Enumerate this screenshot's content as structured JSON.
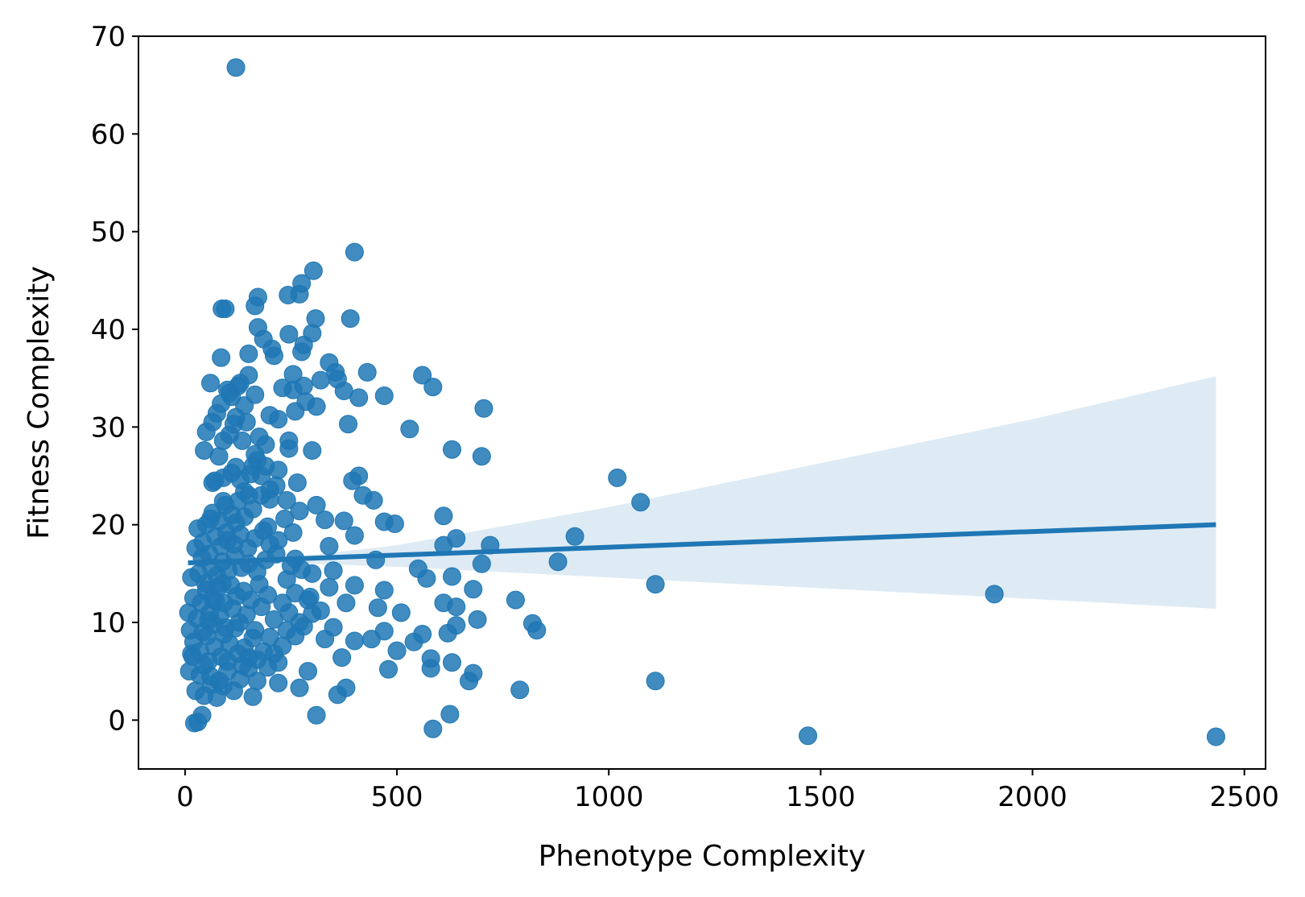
{
  "chart_data": {
    "type": "scatter",
    "title": "",
    "xlabel": "Phenotype Complexity",
    "ylabel": "Fitness Complexity",
    "xlim": [
      -110,
      2550
    ],
    "ylim": [
      -5,
      70
    ],
    "xticks": [
      0,
      500,
      1000,
      1500,
      2000,
      2500
    ],
    "yticks": [
      0,
      10,
      20,
      30,
      40,
      50,
      60,
      70
    ],
    "grid": false,
    "legend": "none",
    "colors": {
      "points": "#1f77b4",
      "regression_line": "#1f77b4",
      "confidence_band": "#1f77b4"
    },
    "regression": {
      "x": [
        7,
        2433
      ],
      "y": [
        16.1,
        20.0
      ],
      "ci_lower": [
        [
          7,
          16.0
        ],
        [
          300,
          16.0
        ],
        [
          500,
          15.7
        ],
        [
          1000,
          14.6
        ],
        [
          1500,
          13.5
        ],
        [
          2000,
          12.4
        ],
        [
          2433,
          11.4
        ]
      ],
      "ci_upper": [
        [
          7,
          16.2
        ],
        [
          300,
          16.9
        ],
        [
          500,
          17.9
        ],
        [
          1000,
          21.8
        ],
        [
          1500,
          26.3
        ],
        [
          2000,
          30.8
        ],
        [
          2433,
          35.2
        ]
      ]
    },
    "series": [
      {
        "points": [
          [
            120,
            66.8
          ],
          [
            400,
            47.9
          ],
          [
            303,
            46.0
          ],
          [
            275,
            44.7
          ],
          [
            270,
            43.6
          ],
          [
            243,
            43.5
          ],
          [
            172,
            43.3
          ],
          [
            165,
            42.4
          ],
          [
            95,
            42.1
          ],
          [
            87,
            42.1
          ],
          [
            390,
            41.1
          ],
          [
            308,
            41.1
          ],
          [
            172,
            40.2
          ],
          [
            300,
            39.6
          ],
          [
            245,
            39.5
          ],
          [
            185,
            39.0
          ],
          [
            280,
            38.4
          ],
          [
            205,
            38.0
          ],
          [
            275,
            37.7
          ],
          [
            150,
            37.5
          ],
          [
            85,
            37.1
          ],
          [
            340,
            36.6
          ],
          [
            210,
            37.3
          ],
          [
            430,
            35.6
          ],
          [
            560,
            35.3
          ],
          [
            355,
            35.6
          ],
          [
            255,
            35.4
          ],
          [
            150,
            35.3
          ],
          [
            360,
            34.9
          ],
          [
            585,
            34.1
          ],
          [
            130,
            34.5
          ],
          [
            60,
            34.5
          ],
          [
            280,
            34.2
          ],
          [
            255,
            33.8
          ],
          [
            100,
            33.8
          ],
          [
            470,
            33.2
          ],
          [
            410,
            33.0
          ],
          [
            375,
            33.7
          ],
          [
            165,
            33.3
          ],
          [
            110,
            33.1
          ],
          [
            705,
            31.9
          ],
          [
            310,
            32.1
          ],
          [
            285,
            32.6
          ],
          [
            200,
            31.2
          ],
          [
            75,
            31.4
          ],
          [
            530,
            29.8
          ],
          [
            385,
            30.3
          ],
          [
            145,
            30.5
          ],
          [
            65,
            30.5
          ],
          [
            50,
            29.5
          ],
          [
            630,
            27.7
          ],
          [
            300,
            27.6
          ],
          [
            245,
            28.6
          ],
          [
            190,
            28.2
          ],
          [
            165,
            27.2
          ],
          [
            45,
            27.6
          ],
          [
            80,
            27.0
          ],
          [
            700,
            27.0
          ],
          [
            1020,
            24.8
          ],
          [
            410,
            25.0
          ],
          [
            395,
            24.5
          ],
          [
            265,
            24.3
          ],
          [
            220,
            25.6
          ],
          [
            120,
            25.9
          ],
          [
            70,
            24.5
          ],
          [
            1075,
            22.3
          ],
          [
            420,
            23.0
          ],
          [
            445,
            22.5
          ],
          [
            310,
            22.0
          ],
          [
            240,
            22.5
          ],
          [
            90,
            22.4
          ],
          [
            150,
            23.0
          ],
          [
            610,
            20.9
          ],
          [
            470,
            20.3
          ],
          [
            495,
            20.1
          ],
          [
            375,
            20.4
          ],
          [
            330,
            20.5
          ],
          [
            60,
            20.6
          ],
          [
            920,
            18.8
          ],
          [
            640,
            18.6
          ],
          [
            400,
            18.9
          ],
          [
            720,
            17.9
          ],
          [
            610,
            17.9
          ],
          [
            340,
            17.8
          ],
          [
            200,
            18.0
          ],
          [
            880,
            16.2
          ],
          [
            700,
            16.0
          ],
          [
            450,
            16.4
          ],
          [
            260,
            16.5
          ],
          [
            550,
            15.5
          ],
          [
            570,
            14.5
          ],
          [
            630,
            14.7
          ],
          [
            350,
            15.3
          ],
          [
            300,
            15.0
          ],
          [
            1110,
            13.9
          ],
          [
            1910,
            12.9
          ],
          [
            780,
            12.3
          ],
          [
            680,
            13.4
          ],
          [
            470,
            13.3
          ],
          [
            400,
            13.8
          ],
          [
            340,
            13.6
          ],
          [
            610,
            12.0
          ],
          [
            640,
            11.6
          ],
          [
            510,
            11.0
          ],
          [
            455,
            11.5
          ],
          [
            380,
            12.0
          ],
          [
            290,
            12.3
          ],
          [
            690,
            10.3
          ],
          [
            820,
            9.9
          ],
          [
            830,
            9.2
          ],
          [
            640,
            9.7
          ],
          [
            620,
            8.9
          ],
          [
            560,
            8.8
          ],
          [
            540,
            8.0
          ],
          [
            500,
            7.1
          ],
          [
            470,
            9.1
          ],
          [
            440,
            8.3
          ],
          [
            400,
            8.1
          ],
          [
            350,
            9.5
          ],
          [
            330,
            8.3
          ],
          [
            300,
            10.9
          ],
          [
            260,
            8.6
          ],
          [
            580,
            6.3
          ],
          [
            480,
            5.2
          ],
          [
            370,
            6.4
          ],
          [
            290,
            5.0
          ],
          [
            220,
            5.9
          ],
          [
            1110,
            4.0
          ],
          [
            790,
            3.1
          ],
          [
            680,
            4.8
          ],
          [
            670,
            4.0
          ],
          [
            630,
            5.9
          ],
          [
            580,
            5.3
          ],
          [
            380,
            3.3
          ],
          [
            360,
            2.6
          ],
          [
            270,
            3.3
          ],
          [
            220,
            3.8
          ],
          [
            160,
            2.4
          ],
          [
            310,
            0.5
          ],
          [
            625,
            0.6
          ],
          [
            585,
            -0.9
          ],
          [
            1470,
            -1.6
          ],
          [
            2433,
            -1.7
          ],
          [
            30,
            -0.2
          ],
          [
            22,
            -0.3
          ],
          [
            40,
            0.5
          ],
          [
            25,
            3.0
          ],
          [
            45,
            2.5
          ],
          [
            60,
            4.5
          ],
          [
            75,
            2.3
          ],
          [
            90,
            3.5
          ],
          [
            100,
            5.0
          ],
          [
            115,
            3.0
          ],
          [
            130,
            4.2
          ],
          [
            150,
            5.3
          ],
          [
            170,
            4.0
          ],
          [
            10,
            5.0
          ],
          [
            18,
            6.5
          ],
          [
            35,
            7.0
          ],
          [
            55,
            6.0
          ],
          [
            70,
            7.5
          ],
          [
            85,
            6.5
          ],
          [
            105,
            7.8
          ],
          [
            125,
            6.8
          ],
          [
            140,
            7.4
          ],
          [
            160,
            8.4
          ],
          [
            185,
            7.0
          ],
          [
            200,
            8.5
          ],
          [
            230,
            7.6
          ],
          [
            12,
            9.2
          ],
          [
            28,
            10.4
          ],
          [
            42,
            9.0
          ],
          [
            58,
            11.0
          ],
          [
            68,
            9.8
          ],
          [
            82,
            10.7
          ],
          [
            95,
            9.5
          ],
          [
            112,
            11.4
          ],
          [
            128,
            10.0
          ],
          [
            145,
            10.8
          ],
          [
            165,
            9.2
          ],
          [
            180,
            11.6
          ],
          [
            210,
            10.3
          ],
          [
            245,
            11.0
          ],
          [
            270,
            10.0
          ],
          [
            8,
            11.0
          ],
          [
            20,
            12.5
          ],
          [
            38,
            12.0
          ],
          [
            50,
            13.3
          ],
          [
            65,
            12.4
          ],
          [
            78,
            13.6
          ],
          [
            92,
            12.0
          ],
          [
            108,
            13.8
          ],
          [
            122,
            12.7
          ],
          [
            138,
            13.2
          ],
          [
            155,
            12.3
          ],
          [
            175,
            13.9
          ],
          [
            195,
            12.8
          ],
          [
            230,
            12.0
          ],
          [
            15,
            14.6
          ],
          [
            32,
            15.0
          ],
          [
            48,
            14.0
          ],
          [
            62,
            15.6
          ],
          [
            75,
            14.8
          ],
          [
            88,
            16.2
          ],
          [
            102,
            15.3
          ],
          [
            118,
            16.8
          ],
          [
            133,
            15.6
          ],
          [
            150,
            16.0
          ],
          [
            170,
            15.2
          ],
          [
            190,
            16.4
          ],
          [
            215,
            17.0
          ],
          [
            250,
            15.8
          ],
          [
            25,
            17.6
          ],
          [
            42,
            18.2
          ],
          [
            57,
            17.0
          ],
          [
            72,
            18.8
          ],
          [
            85,
            17.8
          ],
          [
            98,
            19.2
          ],
          [
            115,
            18.0
          ],
          [
            130,
            19.0
          ],
          [
            148,
            17.6
          ],
          [
            165,
            18.6
          ],
          [
            185,
            19.4
          ],
          [
            220,
            18.4
          ],
          [
            30,
            19.6
          ],
          [
            50,
            20.0
          ],
          [
            65,
            21.2
          ],
          [
            80,
            20.4
          ],
          [
            95,
            22.0
          ],
          [
            110,
            21.0
          ],
          [
            125,
            22.4
          ],
          [
            140,
            20.8
          ],
          [
            160,
            21.6
          ],
          [
            180,
            23.0
          ],
          [
            200,
            22.6
          ],
          [
            65,
            24.3
          ],
          [
            90,
            24.8
          ],
          [
            110,
            25.3
          ],
          [
            130,
            24.6
          ],
          [
            155,
            25.2
          ],
          [
            170,
            26.6
          ],
          [
            190,
            26.0
          ],
          [
            90,
            28.6
          ],
          [
            105,
            29.2
          ],
          [
            120,
            31.0
          ],
          [
            140,
            32.2
          ],
          [
            105,
            33.5
          ],
          [
            125,
            34.2
          ],
          [
            85,
            32.4
          ],
          [
            115,
            30.3
          ],
          [
            135,
            28.6
          ],
          [
            15,
            6.8
          ],
          [
            20,
            8.0
          ],
          [
            35,
            4.6
          ],
          [
            45,
            5.6
          ],
          [
            52,
            8.6
          ],
          [
            62,
            3.6
          ],
          [
            80,
            4.0
          ],
          [
            92,
            8.8
          ],
          [
            100,
            6.0
          ],
          [
            118,
            9.4
          ],
          [
            135,
            5.6
          ],
          [
            150,
            6.4
          ],
          [
            170,
            6.2
          ],
          [
            195,
            5.4
          ],
          [
            210,
            6.8
          ],
          [
            240,
            9.2
          ],
          [
            260,
            13.0
          ],
          [
            280,
            9.6
          ],
          [
            295,
            12.6
          ],
          [
            320,
            11.2
          ],
          [
            240,
            14.4
          ],
          [
            275,
            15.4
          ],
          [
            255,
            19.2
          ],
          [
            235,
            20.6
          ],
          [
            270,
            21.4
          ],
          [
            200,
            23.6
          ],
          [
            215,
            24.0
          ],
          [
            195,
            19.8
          ],
          [
            180,
            25.0
          ],
          [
            88,
            14.0
          ],
          [
            72,
            12.2
          ],
          [
            55,
            10.2
          ],
          [
            40,
            16.6
          ],
          [
            100,
            18.4
          ],
          [
            120,
            20.2
          ],
          [
            140,
            23.4
          ],
          [
            160,
            26.0
          ],
          [
            175,
            29.0
          ],
          [
            230,
            34.0
          ],
          [
            320,
            34.8
          ],
          [
            260,
            31.6
          ],
          [
            220,
            30.8
          ],
          [
            245,
            27.8
          ]
        ]
      }
    ]
  }
}
